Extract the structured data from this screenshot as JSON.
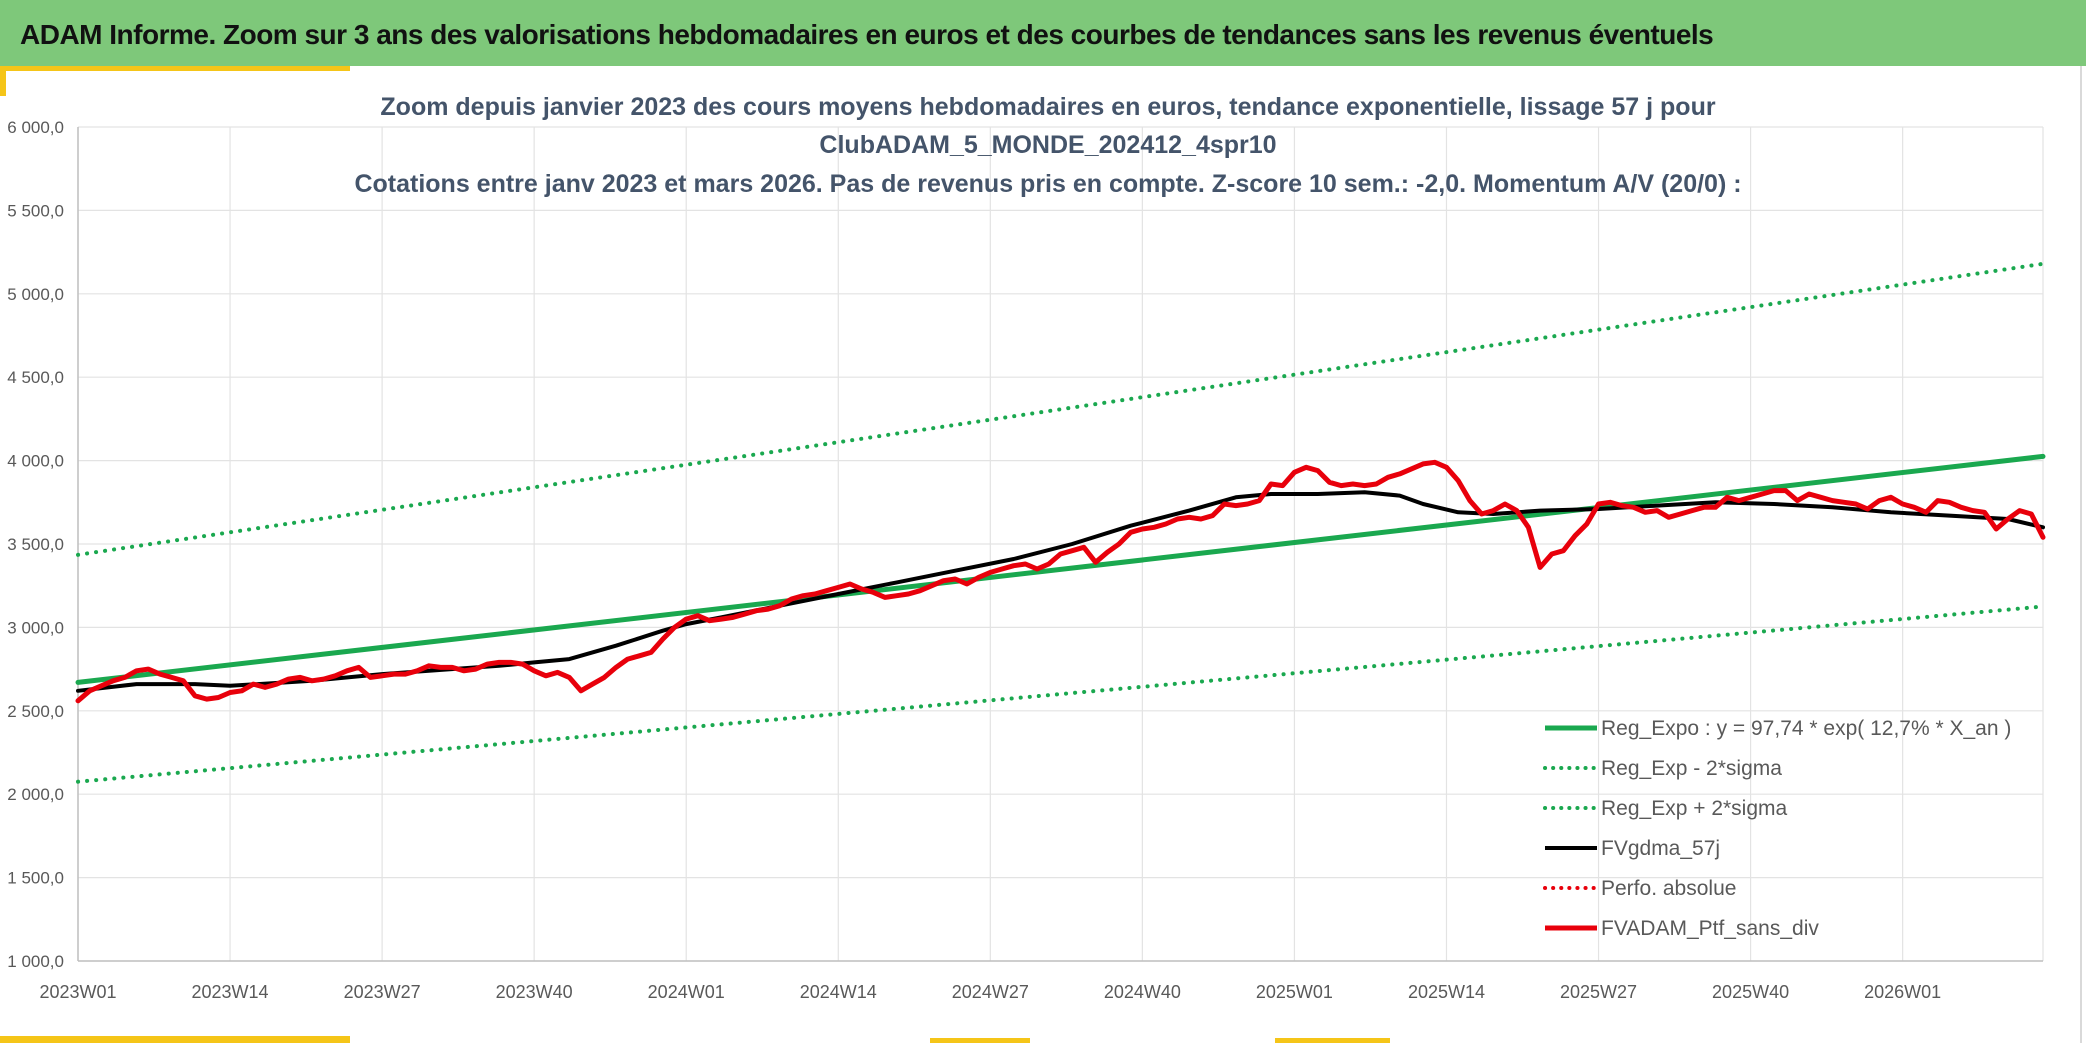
{
  "banner": {
    "title": "ADAM Informe. Zoom sur 3 ans des valorisations hebdomadaires en euros et des courbes de tendances sans les revenus éventuels"
  },
  "colors": {
    "banner_bg": "#7ec87a",
    "accent": "#f5c518",
    "trend_green": "#1aa84f",
    "portfolio_red": "#e8000b",
    "smooth_black": "#000000",
    "grid": "#e3e3e3"
  },
  "chart_data": {
    "type": "line",
    "title_lines": [
      "Zoom depuis janvier 2023 des cours moyens hebdomadaires en euros, tendance exponentielle, lissage 57 j pour",
      "ClubADAM_5_MONDE_202412_4spr10",
      "Cotations entre janv 2023 et mars 2026. Pas de revenus pris en compte. Z-score 10 sem.: -2,0. Momentum A/V (20/0) :"
    ],
    "ylim": [
      1000,
      6000
    ],
    "yticks": [
      1000,
      1500,
      2000,
      2500,
      3000,
      3500,
      4000,
      4500,
      5000,
      5500,
      6000
    ],
    "ytick_labels": [
      "1 000,0",
      "1 500,0",
      "2 000,0",
      "2 500,0",
      "3 000,0",
      "3 500,0",
      "4 000,0",
      "4 500,0",
      "5 000,0",
      "5 500,0",
      "6 000,0"
    ],
    "x_range_weeks": [
      0,
      168
    ],
    "xticks": [
      0,
      13,
      26,
      39,
      52,
      65,
      78,
      91,
      104,
      117,
      130,
      143,
      156
    ],
    "xtick_labels": [
      "2023W01",
      "2023W14",
      "2023W27",
      "2023W40",
      "2024W01",
      "2024W14",
      "2024W27",
      "2024W40",
      "2025W01",
      "2025W14",
      "2025W27",
      "2025W40",
      "2026W01"
    ],
    "series": [
      {
        "name": "Reg_Expo : y = 97,74 * exp( 12,7% *  X_an )",
        "style": "solid",
        "color": "#1aa84f",
        "width": 5,
        "points": [
          [
            0,
            2670
          ],
          [
            168,
            4025
          ]
        ]
      },
      {
        "name": "Reg_Exp - 2*sigma",
        "style": "dotted",
        "color": "#1aa84f",
        "width": 4,
        "points": [
          [
            0,
            2075
          ],
          [
            168,
            3125
          ]
        ]
      },
      {
        "name": "Reg_Exp + 2*sigma",
        "style": "dotted",
        "color": "#1aa84f",
        "width": 4,
        "points": [
          [
            0,
            3435
          ],
          [
            168,
            5180
          ]
        ]
      },
      {
        "name": "FVgdma_57j",
        "style": "solid",
        "color": "#000000",
        "width": 4,
        "points": [
          [
            0,
            2620
          ],
          [
            5,
            2660
          ],
          [
            10,
            2660
          ],
          [
            13,
            2650
          ],
          [
            20,
            2680
          ],
          [
            26,
            2720
          ],
          [
            30,
            2740
          ],
          [
            36,
            2770
          ],
          [
            39,
            2790
          ],
          [
            42,
            2810
          ],
          [
            46,
            2890
          ],
          [
            50,
            2980
          ],
          [
            52,
            3020
          ],
          [
            55,
            3060
          ],
          [
            60,
            3130
          ],
          [
            65,
            3200
          ],
          [
            70,
            3270
          ],
          [
            75,
            3340
          ],
          [
            80,
            3410
          ],
          [
            85,
            3500
          ],
          [
            90,
            3610
          ],
          [
            95,
            3700
          ],
          [
            99,
            3780
          ],
          [
            102,
            3800
          ],
          [
            106,
            3800
          ],
          [
            110,
            3810
          ],
          [
            113,
            3790
          ],
          [
            115,
            3740
          ],
          [
            118,
            3690
          ],
          [
            121,
            3680
          ],
          [
            125,
            3700
          ],
          [
            130,
            3710
          ],
          [
            135,
            3730
          ],
          [
            140,
            3750
          ],
          [
            145,
            3740
          ],
          [
            150,
            3720
          ],
          [
            155,
            3690
          ],
          [
            160,
            3670
          ],
          [
            165,
            3650
          ],
          [
            168,
            3600
          ]
        ]
      },
      {
        "name": "Perfo. absolue",
        "style": "dotted",
        "color": "#e8000b",
        "width": 4,
        "points": []
      },
      {
        "name": "FVADAM_Ptf_sans_div",
        "style": "solid",
        "color": "#e8000b",
        "width": 5,
        "points": [
          [
            0,
            2560
          ],
          [
            1,
            2620
          ],
          [
            2,
            2650
          ],
          [
            3,
            2680
          ],
          [
            4,
            2700
          ],
          [
            5,
            2740
          ],
          [
            6,
            2750
          ],
          [
            7,
            2720
          ],
          [
            8,
            2700
          ],
          [
            9,
            2680
          ],
          [
            10,
            2590
          ],
          [
            11,
            2570
          ],
          [
            12,
            2580
          ],
          [
            13,
            2610
          ],
          [
            14,
            2620
          ],
          [
            15,
            2660
          ],
          [
            16,
            2640
          ],
          [
            17,
            2660
          ],
          [
            18,
            2690
          ],
          [
            19,
            2700
          ],
          [
            20,
            2680
          ],
          [
            21,
            2690
          ],
          [
            22,
            2710
          ],
          [
            23,
            2740
          ],
          [
            24,
            2760
          ],
          [
            25,
            2700
          ],
          [
            26,
            2710
          ],
          [
            27,
            2720
          ],
          [
            28,
            2720
          ],
          [
            29,
            2740
          ],
          [
            30,
            2770
          ],
          [
            31,
            2760
          ],
          [
            32,
            2760
          ],
          [
            33,
            2740
          ],
          [
            34,
            2750
          ],
          [
            35,
            2780
          ],
          [
            36,
            2790
          ],
          [
            37,
            2790
          ],
          [
            38,
            2780
          ],
          [
            39,
            2740
          ],
          [
            40,
            2710
          ],
          [
            41,
            2730
          ],
          [
            42,
            2700
          ],
          [
            43,
            2620
          ],
          [
            44,
            2660
          ],
          [
            45,
            2700
          ],
          [
            46,
            2760
          ],
          [
            47,
            2810
          ],
          [
            48,
            2830
          ],
          [
            49,
            2850
          ],
          [
            50,
            2930
          ],
          [
            51,
            3000
          ],
          [
            52,
            3050
          ],
          [
            53,
            3070
          ],
          [
            54,
            3040
          ],
          [
            55,
            3050
          ],
          [
            56,
            3060
          ],
          [
            57,
            3080
          ],
          [
            58,
            3100
          ],
          [
            59,
            3110
          ],
          [
            60,
            3130
          ],
          [
            61,
            3170
          ],
          [
            62,
            3190
          ],
          [
            63,
            3200
          ],
          [
            64,
            3220
          ],
          [
            65,
            3240
          ],
          [
            66,
            3260
          ],
          [
            67,
            3230
          ],
          [
            68,
            3210
          ],
          [
            69,
            3180
          ],
          [
            70,
            3190
          ],
          [
            71,
            3200
          ],
          [
            72,
            3220
          ],
          [
            73,
            3250
          ],
          [
            74,
            3280
          ],
          [
            75,
            3290
          ],
          [
            76,
            3260
          ],
          [
            77,
            3300
          ],
          [
            78,
            3330
          ],
          [
            79,
            3350
          ],
          [
            80,
            3370
          ],
          [
            81,
            3380
          ],
          [
            82,
            3350
          ],
          [
            83,
            3380
          ],
          [
            84,
            3440
          ],
          [
            85,
            3460
          ],
          [
            86,
            3480
          ],
          [
            87,
            3390
          ],
          [
            88,
            3450
          ],
          [
            89,
            3500
          ],
          [
            90,
            3570
          ],
          [
            91,
            3590
          ],
          [
            92,
            3600
          ],
          [
            93,
            3620
          ],
          [
            94,
            3650
          ],
          [
            95,
            3660
          ],
          [
            96,
            3650
          ],
          [
            97,
            3670
          ],
          [
            98,
            3740
          ],
          [
            99,
            3730
          ],
          [
            100,
            3740
          ],
          [
            101,
            3760
          ],
          [
            102,
            3860
          ],
          [
            103,
            3850
          ],
          [
            104,
            3930
          ],
          [
            105,
            3960
          ],
          [
            106,
            3940
          ],
          [
            107,
            3870
          ],
          [
            108,
            3850
          ],
          [
            109,
            3860
          ],
          [
            110,
            3850
          ],
          [
            111,
            3860
          ],
          [
            112,
            3900
          ],
          [
            113,
            3920
          ],
          [
            114,
            3950
          ],
          [
            115,
            3980
          ],
          [
            116,
            3990
          ],
          [
            117,
            3960
          ],
          [
            118,
            3880
          ],
          [
            119,
            3760
          ],
          [
            120,
            3680
          ],
          [
            121,
            3700
          ],
          [
            122,
            3740
          ],
          [
            123,
            3700
          ],
          [
            124,
            3600
          ],
          [
            125,
            3360
          ],
          [
            126,
            3440
          ],
          [
            127,
            3460
          ],
          [
            128,
            3550
          ],
          [
            129,
            3620
          ],
          [
            130,
            3740
          ],
          [
            131,
            3750
          ],
          [
            132,
            3730
          ],
          [
            133,
            3720
          ],
          [
            134,
            3690
          ],
          [
            135,
            3700
          ],
          [
            136,
            3660
          ],
          [
            137,
            3680
          ],
          [
            138,
            3700
          ],
          [
            139,
            3720
          ],
          [
            140,
            3720
          ],
          [
            141,
            3780
          ],
          [
            142,
            3760
          ],
          [
            143,
            3780
          ],
          [
            144,
            3800
          ],
          [
            145,
            3820
          ],
          [
            146,
            3820
          ],
          [
            147,
            3760
          ],
          [
            148,
            3800
          ],
          [
            149,
            3780
          ],
          [
            150,
            3760
          ],
          [
            151,
            3750
          ],
          [
            152,
            3740
          ],
          [
            153,
            3710
          ],
          [
            154,
            3760
          ],
          [
            155,
            3780
          ],
          [
            156,
            3740
          ],
          [
            157,
            3720
          ],
          [
            158,
            3690
          ],
          [
            159,
            3760
          ],
          [
            160,
            3750
          ],
          [
            161,
            3720
          ],
          [
            162,
            3700
          ],
          [
            163,
            3690
          ],
          [
            164,
            3590
          ],
          [
            165,
            3650
          ],
          [
            166,
            3700
          ],
          [
            167,
            3680
          ],
          [
            168,
            3540
          ]
        ]
      }
    ],
    "legend_position": "bottom-right"
  }
}
